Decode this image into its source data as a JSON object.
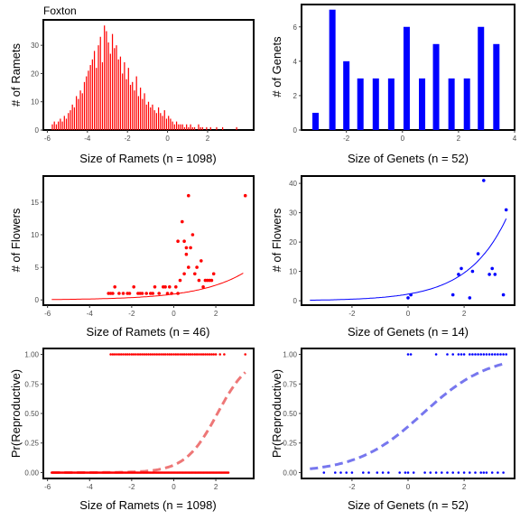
{
  "colors": {
    "ramet": "#ff0000",
    "genet": "#0000ff",
    "ramet_fit": "#ee7777",
    "genet_fit": "#7777ee"
  },
  "chart_data": [
    {
      "type": "bar",
      "title": "Foxton",
      "xlabel": "Size of Ramets (n = 1098)",
      "ylabel": "# of Ramets",
      "xlim": [
        -6.2,
        4.3
      ],
      "ylim": [
        0,
        39
      ],
      "xticks": [
        -6,
        -4,
        -2,
        0,
        2
      ],
      "yticks": [
        0,
        10,
        20,
        30
      ],
      "color": "#ff0000",
      "x": [
        -5.75,
        -5.65,
        -5.55,
        -5.45,
        -5.35,
        -5.25,
        -5.15,
        -5.05,
        -4.95,
        -4.85,
        -4.75,
        -4.65,
        -4.55,
        -4.45,
        -4.35,
        -4.25,
        -4.15,
        -4.05,
        -3.95,
        -3.85,
        -3.75,
        -3.65,
        -3.55,
        -3.45,
        -3.35,
        -3.25,
        -3.15,
        -3.05,
        -2.95,
        -2.85,
        -2.75,
        -2.65,
        -2.55,
        -2.45,
        -2.35,
        -2.25,
        -2.15,
        -2.05,
        -1.95,
        -1.85,
        -1.75,
        -1.65,
        -1.55,
        -1.45,
        -1.35,
        -1.25,
        -1.15,
        -1.05,
        -0.95,
        -0.85,
        -0.75,
        -0.65,
        -0.55,
        -0.45,
        -0.35,
        -0.25,
        -0.15,
        -0.05,
        0.05,
        0.15,
        0.25,
        0.35,
        0.45,
        0.55,
        0.65,
        0.75,
        0.85,
        0.95,
        1.05,
        1.15,
        1.25,
        1.35,
        1.55,
        1.65,
        1.75,
        1.95,
        2.15,
        2.45,
        2.75,
        3.45
      ],
      "values": [
        2,
        3,
        2,
        3,
        4,
        3,
        5,
        4,
        6,
        7,
        9,
        8,
        12,
        11,
        14,
        13,
        17,
        19,
        21,
        23,
        25,
        28,
        22,
        30,
        33,
        24,
        37,
        35,
        31,
        27,
        34,
        29,
        30,
        25,
        26,
        20,
        24,
        18,
        22,
        16,
        17,
        14,
        19,
        12,
        15,
        11,
        13,
        9,
        10,
        8,
        9,
        7,
        6,
        8,
        6,
        5,
        7,
        4,
        5,
        4,
        3,
        2,
        3,
        2,
        2,
        2,
        1,
        2,
        1,
        2,
        1,
        1,
        2,
        1,
        1,
        1,
        1,
        1,
        1,
        1
      ]
    },
    {
      "type": "bar",
      "title": "",
      "xlabel": "Size of Genets (n = 52)",
      "ylabel": "# of Genets",
      "xlim": [
        -3.6,
        4.0
      ],
      "ylim": [
        0,
        7.3
      ],
      "xticks": [
        -2,
        0,
        2,
        4
      ],
      "yticks": [
        0,
        2,
        4,
        6
      ],
      "color": "#0000ff",
      "x": [
        -3.1,
        -2.5,
        -2.0,
        -1.5,
        -0.95,
        -0.4,
        0.15,
        0.7,
        1.2,
        1.75,
        2.3,
        2.8,
        3.35
      ],
      "values": [
        1,
        7,
        4,
        3,
        3,
        3,
        6,
        3,
        5,
        3,
        3,
        6,
        5
      ]
    },
    {
      "type": "scatter",
      "title": "",
      "xlabel": "Size of Ramets (n = 46)",
      "ylabel": "# of Flowers",
      "xlim": [
        -6.2,
        3.8
      ],
      "ylim": [
        -0.8,
        19
      ],
      "xticks": [
        -6,
        -4,
        -2,
        0,
        2
      ],
      "yticks": [
        0,
        5,
        10,
        15
      ],
      "color": "#ff0000",
      "fit": {
        "a": 0.9,
        "b": 0.46,
        "x0": -5.8,
        "x1": 3.3
      },
      "x": [
        -3.1,
        -3.0,
        -2.8,
        -2.6,
        -2.4,
        -2.1,
        -1.9,
        -1.7,
        -1.5,
        -1.3,
        -1.1,
        -0.9,
        -0.7,
        -0.5,
        -0.3,
        -0.1,
        0.1,
        0.3,
        -2.2,
        -1.6,
        -1.0,
        -0.4,
        0.2,
        0.5,
        0.6,
        0.7,
        0.9,
        1.1,
        1.3,
        1.5,
        1.7,
        1.9,
        0.5,
        0.8,
        1.2,
        1.6,
        0.2,
        0.4,
        0.6,
        0.7,
        1.0,
        1.4,
        1.8,
        3.4,
        -0.2,
        -2.9
      ],
      "y": [
        1,
        1,
        2,
        1,
        1,
        1,
        2,
        1,
        1,
        1,
        1,
        2,
        1,
        2,
        1,
        1,
        2,
        3,
        1,
        1,
        1,
        2,
        1,
        4,
        7,
        16,
        10,
        5,
        6,
        3,
        3,
        4,
        9,
        8,
        3,
        3,
        9,
        12,
        8,
        5,
        4,
        2,
        3,
        16,
        2,
        1
      ]
    },
    {
      "type": "scatter",
      "title": "",
      "xlabel": "Size of Genets (n = 14)",
      "ylabel": "# of Flowers",
      "xlim": [
        -3.8,
        3.8
      ],
      "ylim": [
        -1.5,
        42.5
      ],
      "xticks": [
        -2,
        0,
        2
      ],
      "yticks": [
        0,
        10,
        20,
        30,
        40
      ],
      "color": "#0000ff",
      "fit": {
        "a": 2.25,
        "b": 0.72,
        "x0": -3.5,
        "x1": 3.5
      },
      "x": [
        0.0,
        0.1,
        1.6,
        1.8,
        1.9,
        2.2,
        2.5,
        2.7,
        2.9,
        3.0,
        3.1,
        3.4,
        3.5,
        2.3
      ],
      "y": [
        1,
        2,
        2,
        9,
        11,
        1,
        16,
        41,
        9,
        11,
        9,
        2,
        31,
        10
      ]
    },
    {
      "type": "scatter",
      "title": "",
      "xlabel": "Size of Ramets (n = 1098)",
      "ylabel": "Pr(Reproductive)",
      "xlim": [
        -6.2,
        3.8
      ],
      "ylim": [
        -0.05,
        1.05
      ],
      "xticks": [
        -6,
        -4,
        -2,
        0,
        2
      ],
      "yticks": [
        0,
        0.25,
        0.5,
        0.75,
        1
      ],
      "ytick_labels": [
        "0.00",
        "0.25",
        "0.50",
        "0.75",
        "1.00"
      ],
      "color": "#ff0000",
      "fit_color": "#ee7777",
      "logistic": {
        "b0": -2.7,
        "b1": 1.3,
        "x0": -5.8,
        "x1": 3.4
      },
      "zeros": {
        "from": -5.8,
        "to": 2.6,
        "step": 0.05
      },
      "ones": [
        -3.0,
        -2.9,
        -2.8,
        -2.7,
        -2.6,
        -2.5,
        -2.4,
        -2.3,
        -2.2,
        -2.1,
        -2.0,
        -1.9,
        -1.8,
        -1.7,
        -1.6,
        -1.5,
        -1.4,
        -1.3,
        -1.2,
        -1.1,
        -1.0,
        -0.9,
        -0.8,
        -0.7,
        -0.6,
        -0.5,
        -0.4,
        -0.3,
        -0.2,
        -0.1,
        0.0,
        0.1,
        0.2,
        0.3,
        0.4,
        0.5,
        0.6,
        0.7,
        0.8,
        0.9,
        1.0,
        1.1,
        1.2,
        1.3,
        1.4,
        1.5,
        1.6,
        1.7,
        1.8,
        1.9,
        2.0,
        2.2,
        2.4,
        3.4
      ]
    },
    {
      "type": "scatter",
      "title": "",
      "xlabel": "Size of Genets (n = 52)",
      "ylabel": "Pr(Reproductive)",
      "xlim": [
        -3.8,
        3.8
      ],
      "ylim": [
        -0.05,
        1.05
      ],
      "xticks": [
        -2,
        0,
        2
      ],
      "yticks": [
        0,
        0.25,
        0.5,
        0.75,
        1
      ],
      "ytick_labels": [
        "0.00",
        "0.25",
        "0.50",
        "0.75",
        "1.00"
      ],
      "color": "#0000ff",
      "fit_color": "#7777ee",
      "logistic": {
        "b0": -0.45,
        "b1": 0.85,
        "x0": -3.5,
        "x1": 3.5
      },
      "zeros": [
        -3.0,
        -2.6,
        -2.4,
        -2.2,
        -1.6,
        -1.4,
        -0.9,
        -0.7,
        -0.3,
        0.2,
        0.6,
        0.8,
        1.4,
        1.6,
        2.0,
        2.2,
        2.4,
        2.7,
        3.0,
        3.4,
        -1.1,
        -0.1,
        1.0,
        1.8,
        2.6,
        3.2,
        -2.0,
        0.0,
        1.2,
        2.8
      ],
      "ones": [
        0.0,
        0.1,
        1.6,
        1.8,
        1.9,
        2.2,
        2.5,
        2.7,
        2.9,
        3.0,
        3.1,
        3.4,
        3.5,
        2.3,
        3.2,
        3.3,
        1.0,
        1.4,
        2.0,
        2.4,
        2.6,
        2.8
      ]
    }
  ]
}
